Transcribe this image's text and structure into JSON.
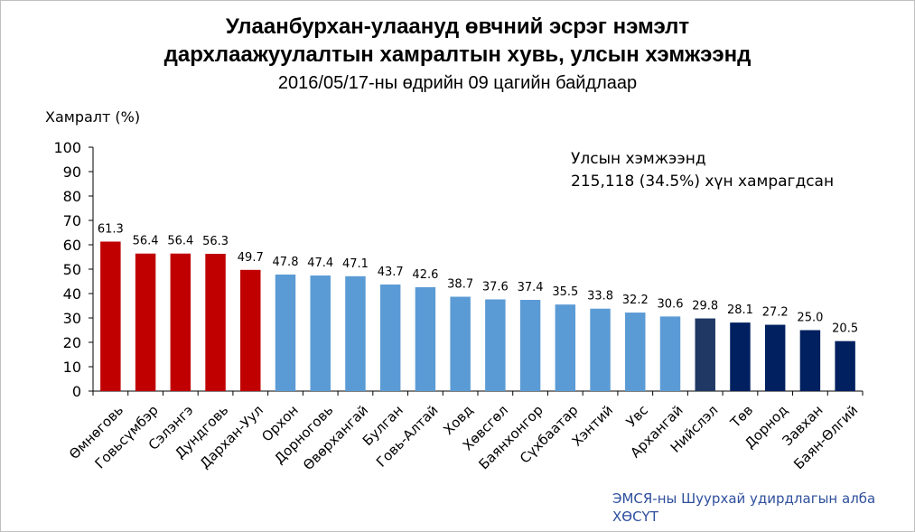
{
  "colors": {
    "top": "#c00000",
    "middle": "#5b9bd5",
    "capital": "#1f3864",
    "bottom": "#002060",
    "source_text": "#2e4f9c"
  },
  "annotation": {
    "line1": "Улсын хэмжээнд",
    "line2": "215,118 (34.5%) хүн хамрагдсан"
  },
  "source": {
    "line1": "ЭМСЯ-ны Шуурхай удирдлагын алба",
    "line2": "ХӨСҮТ"
  },
  "chart_data": {
    "type": "bar",
    "title_line1": "Улаанбурхан-улаануд өвчний эсрэг нэмэлт",
    "title_line2": "дархлаажуулалтын хамралтын хувь, улсын хэмжээнд",
    "subtitle": "2016/05/17-ны өдрийн 09 цагийн байдлаар",
    "ylabel": "Хамралт (%)",
    "xlabel": "",
    "ylim": [
      0,
      100
    ],
    "yticks": [
      0,
      10,
      20,
      30,
      40,
      50,
      60,
      70,
      80,
      90,
      100
    ],
    "grid": false,
    "categories": [
      "Өмнөговь",
      "Говьсүмбэр",
      "Сэлэнгэ",
      "Дундговь",
      "Дархан-Уул",
      "Орхон",
      "Дорноговь",
      "Өвөрхангай",
      "Булган",
      "Говь-Алтай",
      "Ховд",
      "Хөвсгөл",
      "Баянхонгор",
      "Сүхбаатар",
      "Хэнтий",
      "Увс",
      "Архангай",
      "Нийслэл",
      "Төв",
      "Дорнод",
      "Завхан",
      "Баян-Өлгий"
    ],
    "values": [
      61.3,
      56.4,
      56.4,
      56.3,
      49.7,
      47.8,
      47.4,
      47.1,
      43.7,
      42.6,
      38.7,
      37.6,
      37.4,
      35.5,
      33.8,
      32.2,
      30.6,
      29.8,
      28.1,
      27.2,
      25.0,
      20.5
    ],
    "value_labels": [
      "61.3",
      "56.4",
      "56.4",
      "56.3",
      "49.7",
      "47.8",
      "47.4",
      "47.1",
      "43.7",
      "42.6",
      "38.7",
      "37.6",
      "37.4",
      "35.5",
      "33.8",
      "32.2",
      "30.6",
      "29.8",
      "28.1",
      "27.2",
      "25.0",
      "20.5"
    ],
    "bar_groups": [
      "top",
      "top",
      "top",
      "top",
      "top",
      "middle",
      "middle",
      "middle",
      "middle",
      "middle",
      "middle",
      "middle",
      "middle",
      "middle",
      "middle",
      "middle",
      "middle",
      "capital",
      "bottom",
      "bottom",
      "bottom",
      "bottom"
    ]
  }
}
